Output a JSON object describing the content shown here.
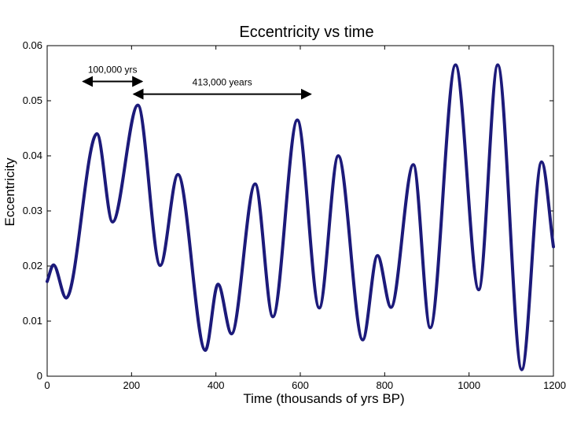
{
  "chart_data": {
    "type": "line",
    "title": "Eccentricity vs time",
    "xlabel": "Time (thousands of yrs BP)",
    "ylabel": "Eccentricity",
    "xlim": [
      0,
      1200
    ],
    "ylim": [
      0,
      0.06
    ],
    "x_ticks": [
      0,
      200,
      400,
      600,
      800,
      1000,
      1200
    ],
    "y_ticks": [
      0,
      0.01,
      0.02,
      0.03,
      0.04,
      0.05,
      0.06
    ],
    "x_tick_labels": [
      "0",
      "200",
      "400",
      "600",
      "800",
      "1000",
      "1200"
    ],
    "y_tick_labels": [
      "0",
      "0.01",
      "0.02",
      "0.03",
      "0.04",
      "0.05",
      "0.06"
    ],
    "grid": false,
    "series": [
      {
        "name": "Eccentricity",
        "color": "#1c1a7a",
        "points": [
          [
            0,
            0.0172
          ],
          [
            15,
            0.0202
          ],
          [
            45,
            0.0142
          ],
          [
            118,
            0.044
          ],
          [
            155,
            0.028
          ],
          [
            215,
            0.0492
          ],
          [
            268,
            0.0201
          ],
          [
            310,
            0.0366
          ],
          [
            375,
            0.0047
          ],
          [
            405,
            0.0167
          ],
          [
            437,
            0.0077
          ],
          [
            493,
            0.0349
          ],
          [
            535,
            0.0108
          ],
          [
            593,
            0.0465
          ],
          [
            645,
            0.0124
          ],
          [
            690,
            0.04
          ],
          [
            748,
            0.0066
          ],
          [
            783,
            0.0219
          ],
          [
            815,
            0.0125
          ],
          [
            868,
            0.0384
          ],
          [
            908,
            0.0088
          ],
          [
            968,
            0.0565
          ],
          [
            1023,
            0.0157
          ],
          [
            1068,
            0.0565
          ],
          [
            1125,
            0.0012
          ],
          [
            1172,
            0.0389
          ],
          [
            1200,
            0.0235
          ]
        ]
      }
    ],
    "annotations": [
      {
        "text": "100,000 yrs",
        "x_start": 85,
        "x_end": 225,
        "y": 0.0535
      },
      {
        "text": "413,000 years",
        "x_start": 205,
        "x_end": 625,
        "y": 0.0512
      }
    ]
  }
}
